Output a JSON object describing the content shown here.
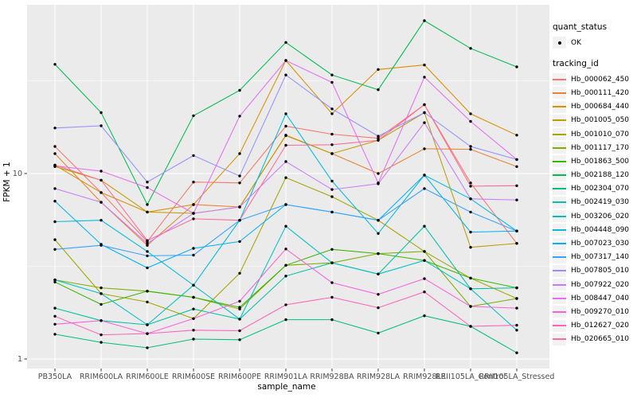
{
  "figure": {
    "bg": "#FFFFFF",
    "panel_bg": "#EBEBEB",
    "grid_color": "#FFFFFF",
    "tick_color": "#333333",
    "axis_text_color": "#4D4D4D",
    "title_color": "#000000",
    "point_color": "#000000"
  },
  "legend": {
    "quant_title": "quant_status",
    "quant_items": [
      {
        "label": "OK",
        "marker": "point",
        "color": "#000000"
      }
    ],
    "tracking_title": "tracking_id"
  },
  "chart_data": {
    "type": "line",
    "title": "",
    "xlabel": "sample_name",
    "ylabel": "FPKM + 1",
    "y_scale": "log10",
    "ylim": [
      0.88,
      79
    ],
    "y_ticks": [
      {
        "label": "1",
        "value": 1
      },
      {
        "label": "10",
        "value": 10
      }
    ],
    "y_minor_gridlines": [
      3.162,
      31.62
    ],
    "grid": true,
    "legend_position": "right",
    "marker_legend": {
      "title": "quant_status",
      "entries": [
        "OK"
      ]
    },
    "x_categories": [
      "PB350LA",
      "RRIM600LA",
      "RRIM600LE",
      "RRIM600SE",
      "RRIM600PE",
      "RRIM901LA",
      "RRIM928BA",
      "RRIM928LA",
      "RRIM928LE",
      "RRII105LA_Control",
      "RRII105LA_Stressed"
    ],
    "series": [
      {
        "name": "Hb_000062_450",
        "color": "#F8766D",
        "values": [
          14.0,
          7.9,
          4.3,
          9.0,
          8.9,
          18.0,
          16.3,
          15.5,
          23.5,
          8.9,
          4.2
        ]
      },
      {
        "name": "Hb_000111_420",
        "color": "#EA8331",
        "values": [
          12.8,
          7.0,
          4.1,
          6.8,
          6.6,
          16.0,
          12.8,
          10.0,
          13.6,
          13.5,
          10.9
        ]
      },
      {
        "name": "Hb_000684_440",
        "color": "#D89000",
        "values": [
          11.1,
          7.9,
          6.2,
          6.8,
          12.8,
          40.7,
          21.0,
          36.4,
          38.5,
          21.0,
          16.1
        ]
      },
      {
        "name": "Hb_001005_050",
        "color": "#C09B00",
        "values": [
          10.9,
          9.2,
          6.2,
          6.1,
          6.6,
          16.1,
          12.8,
          15.1,
          21.3,
          4.0,
          4.2
        ]
      },
      {
        "name": "Hb_001010_070",
        "color": "#A3A500",
        "values": [
          4.4,
          2.25,
          2.03,
          1.65,
          2.9,
          9.5,
          7.5,
          5.6,
          3.8,
          2.73,
          2.12
        ]
      },
      {
        "name": "Hb_001117_170",
        "color": "#7CAE00",
        "values": [
          2.67,
          2.42,
          2.32,
          2.15,
          1.86,
          3.2,
          3.3,
          3.7,
          3.8,
          1.92,
          2.12
        ]
      },
      {
        "name": "Hb_001863_500",
        "color": "#39B600",
        "values": [
          2.6,
          1.97,
          2.32,
          2.15,
          1.9,
          3.2,
          3.9,
          3.7,
          3.4,
          2.73,
          2.42
        ]
      },
      {
        "name": "Hb_002188_120",
        "color": "#00BB4E",
        "values": [
          38.8,
          21.3,
          6.8,
          20.5,
          28.1,
          50.9,
          34.0,
          28.3,
          66.7,
          47.3,
          37.6
        ]
      },
      {
        "name": "Hb_002304_070",
        "color": "#00BF7D",
        "values": [
          1.36,
          1.23,
          1.15,
          1.28,
          1.27,
          1.63,
          1.63,
          1.38,
          1.71,
          1.5,
          1.08
        ]
      },
      {
        "name": "Hb_002419_030",
        "color": "#00C1A3",
        "values": [
          1.88,
          1.61,
          1.53,
          1.86,
          1.64,
          2.8,
          3.3,
          2.87,
          5.2,
          2.39,
          2.42
        ]
      },
      {
        "name": "Hb_003206_020",
        "color": "#00BFC4",
        "values": [
          2.67,
          2.25,
          1.53,
          2.5,
          1.64,
          5.2,
          3.3,
          2.87,
          3.4,
          2.39,
          1.43
        ]
      },
      {
        "name": "Hb_004448_090",
        "color": "#00BAE0",
        "values": [
          5.5,
          5.6,
          3.8,
          2.5,
          5.6,
          21.0,
          9.1,
          4.75,
          9.8,
          7.3,
          4.9
        ]
      },
      {
        "name": "Hb_007023_030",
        "color": "#00B0F6",
        "values": [
          7.1,
          4.15,
          3.1,
          3.95,
          4.3,
          6.8,
          6.2,
          5.6,
          9.8,
          4.83,
          4.9
        ]
      },
      {
        "name": "Hb_007317_140",
        "color": "#35A2FF",
        "values": [
          3.9,
          4.1,
          3.6,
          3.63,
          5.6,
          6.8,
          6.2,
          5.6,
          8.3,
          6.2,
          4.9
        ]
      },
      {
        "name": "Hb_007805_010",
        "color": "#9590FF",
        "values": [
          17.6,
          18.1,
          9.0,
          12.5,
          9.7,
          34.0,
          22.3,
          15.9,
          21.3,
          14.0,
          11.9
        ]
      },
      {
        "name": "Hb_007922_020",
        "color": "#C77CFF",
        "values": [
          8.3,
          7.0,
          4.2,
          6.1,
          6.6,
          11.6,
          8.2,
          8.8,
          18.8,
          7.3,
          7.2
        ]
      },
      {
        "name": "Hb_008447_040",
        "color": "#E76BF3",
        "values": [
          11.0,
          10.3,
          8.4,
          6.1,
          20.4,
          40.7,
          31.0,
          8.9,
          33.1,
          19.1,
          11.9
        ]
      },
      {
        "name": "Hb_009270_010",
        "color": "#FA62DB",
        "values": [
          1.54,
          1.61,
          1.37,
          1.65,
          2.05,
          3.92,
          2.58,
          2.23,
          2.71,
          1.92,
          1.88
        ]
      },
      {
        "name": "Hb_012627_020",
        "color": "#FF62BC",
        "values": [
          1.7,
          1.35,
          1.37,
          1.43,
          1.42,
          1.96,
          2.15,
          1.89,
          2.3,
          1.5,
          1.52
        ]
      },
      {
        "name": "Hb_020665_010",
        "color": "#FF6A98",
        "values": [
          11.1,
          9.2,
          4.35,
          5.7,
          5.6,
          14.2,
          14.3,
          15.1,
          23.5,
          8.55,
          8.6
        ]
      }
    ]
  }
}
